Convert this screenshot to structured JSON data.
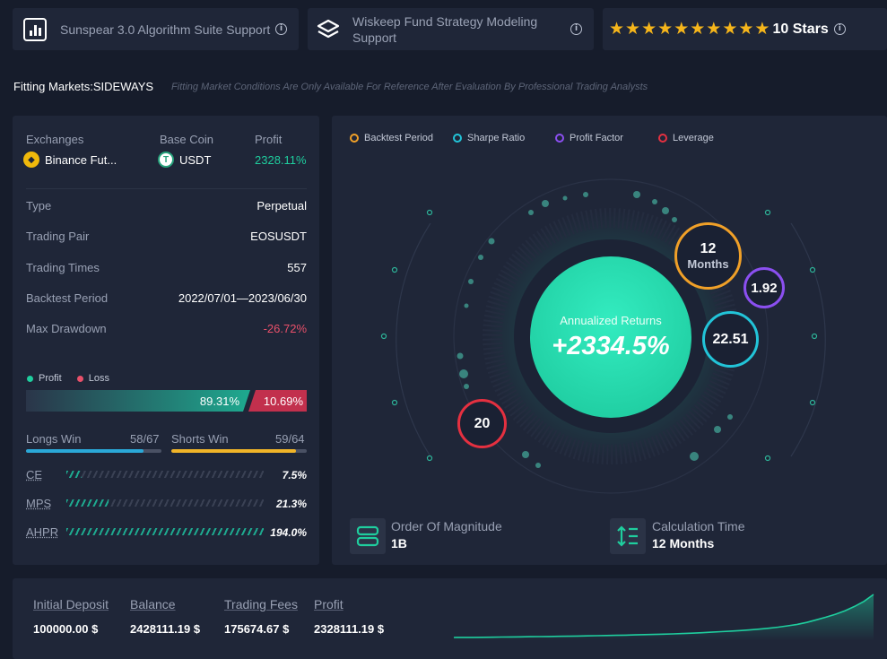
{
  "header": {
    "support_card_1": {
      "title": "Sunspear 3.0 Algorithm Suite Support"
    },
    "support_card_2": {
      "title": "Wiskeep Fund Strategy Modeling Support"
    },
    "rating": {
      "stars": 10,
      "label": "10 Stars"
    }
  },
  "fitting": {
    "label": "Fitting Markets:SIDEWAYS",
    "note": "Fitting Market Conditions Are Only Available For Reference After Evaluation By Professional Trading Analysts"
  },
  "summary": {
    "headers": {
      "exchanges": "Exchanges",
      "base_coin": "Base Coin",
      "profit": "Profit"
    },
    "exchange": "Binance Fut...",
    "base_coin": "USDT",
    "profit": "2328.11%",
    "rows": [
      {
        "label": "Type",
        "value": "Perpetual"
      },
      {
        "label": "Trading Pair",
        "value": "EOSUSDT"
      },
      {
        "label": "Trading Times",
        "value": "557"
      },
      {
        "label": "Backtest Period",
        "value": "2022/07/01—2023/06/30"
      },
      {
        "label": "Max Drawdown",
        "value": "-26.72%"
      }
    ]
  },
  "profit_loss": {
    "legend_profit": "Profit",
    "legend_loss": "Loss",
    "profit_pct": "89.31%",
    "loss_pct": "10.69%",
    "profit_fraction": 0.8931
  },
  "wins": {
    "longs_label": "Longs Win",
    "longs_value": "58/67",
    "longs_fraction": 0.8657,
    "shorts_label": "Shorts Win",
    "shorts_value": "59/64",
    "shorts_fraction": 0.9219
  },
  "metrics": [
    {
      "label": "CE",
      "value": "7.5%",
      "fraction": 0.075
    },
    {
      "label": "MPS",
      "value": "21.3%",
      "fraction": 0.213
    },
    {
      "label": "AHPR",
      "value": "194.0%",
      "fraction": 1.0
    }
  ],
  "radial": {
    "legend": [
      "Backtest Period",
      "Sharpe Ratio",
      "Profit Factor",
      "Leverage"
    ],
    "center_title": "Annualized Returns",
    "center_value": "+2334.5%",
    "backtest_value": "12",
    "backtest_unit": "Months",
    "profit_factor": "1.92",
    "sharpe_ratio": "22.51",
    "leverage": "20",
    "order_label": "Order Of Magnitude",
    "order_value": "1B",
    "calc_label": "Calculation Time",
    "calc_value": "12 Months"
  },
  "colors": {
    "backtest": "#f0a028",
    "sharpe": "#22c4d8",
    "profit_factor": "#8b4ff0",
    "leverage": "#e53040",
    "profit": "#1fce9e",
    "loss": "#e9506a",
    "star": "#f5b51b"
  },
  "totals": {
    "initial_deposit_label": "Initial Deposit",
    "initial_deposit": "100000.00 $",
    "balance_label": "Balance",
    "balance": "2428111.19 $",
    "fees_label": "Trading Fees",
    "fees": "175674.67 $",
    "profit_label": "Profit",
    "profit": "2328111.19 $"
  },
  "sparkline": [
    0,
    0.2,
    0.3,
    0.5,
    0.7,
    1.0,
    1.2,
    1.5,
    1.8,
    2.0,
    2.3,
    2.7,
    3.0,
    3.4,
    3.8,
    4.2,
    4.6,
    5.1,
    5.5,
    6.0,
    6.6,
    7.1,
    7.8,
    8.4,
    9.2,
    10.1,
    11.0,
    12.2,
    13.5,
    14.7,
    16.0,
    17.6,
    19.4,
    21.5,
    24.0,
    27.0,
    30.5,
    35.0,
    41.0,
    47.0,
    54.0,
    62.0,
    72.0,
    84.0,
    100.0
  ]
}
